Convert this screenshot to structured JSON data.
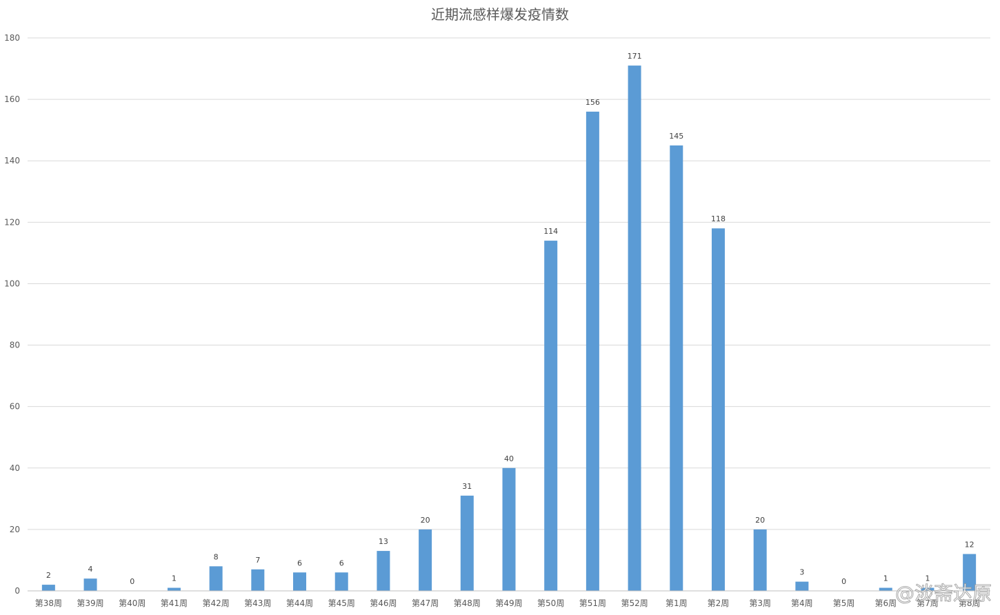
{
  "chart_data": {
    "type": "bar",
    "title": "近期流感样爆发疫情数",
    "xlabel": "",
    "ylabel": "",
    "ylim": [
      0,
      180
    ],
    "yticks": [
      0,
      20,
      40,
      60,
      80,
      100,
      120,
      140,
      160,
      180
    ],
    "grid": true,
    "legend": "none",
    "bar_color": "#5b9bd5",
    "categories": [
      "第38周",
      "第39周",
      "第40周",
      "第41周",
      "第42周",
      "第43周",
      "第44周",
      "第45周",
      "第46周",
      "第47周",
      "第48周",
      "第49周",
      "第50周",
      "第51周",
      "第52周",
      "第1周",
      "第2周",
      "第3周",
      "第4周",
      "第5周",
      "第6周",
      "第7周",
      "第8周"
    ],
    "values": [
      2,
      4,
      0,
      1,
      8,
      7,
      6,
      6,
      13,
      20,
      31,
      40,
      114,
      156,
      171,
      145,
      118,
      20,
      3,
      0,
      1,
      1,
      12
    ]
  },
  "watermark": "@淡斋达原"
}
